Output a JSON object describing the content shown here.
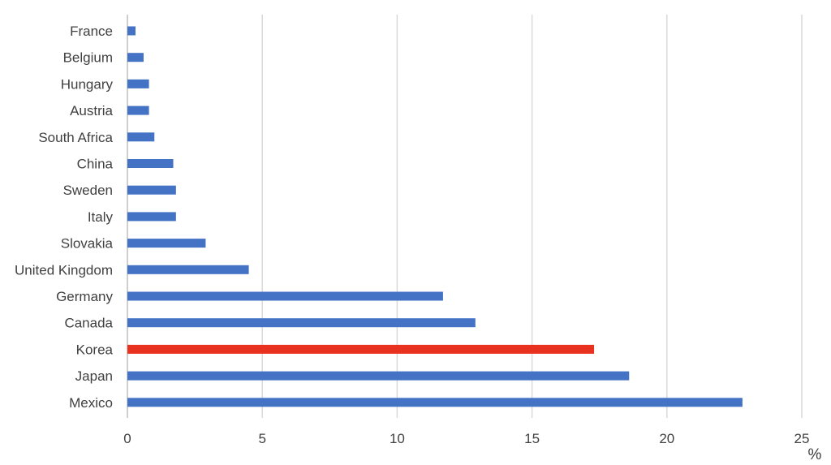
{
  "chart_data": {
    "type": "bar",
    "orientation": "horizontal",
    "categories": [
      "France",
      "Belgium",
      "Hungary",
      "Austria",
      "South Africa",
      "China",
      "Sweden",
      "Italy",
      "Slovakia",
      "United Kingdom",
      "Germany",
      "Canada",
      "Korea",
      "Japan",
      "Mexico"
    ],
    "values": [
      0.3,
      0.6,
      0.8,
      0.8,
      1.0,
      1.7,
      1.8,
      1.8,
      2.9,
      4.5,
      11.7,
      12.9,
      17.3,
      18.6,
      22.8
    ],
    "highlight_category": "Korea",
    "colors": {
      "default": "#4472c4",
      "highlight": "#e8311f"
    },
    "title": "",
    "xlabel": "%",
    "ylabel": "",
    "xlim": [
      0,
      25
    ],
    "xticks": [
      "0",
      "5",
      "10",
      "15",
      "20",
      "25"
    ],
    "grid": "vertical",
    "legend": "none"
  }
}
